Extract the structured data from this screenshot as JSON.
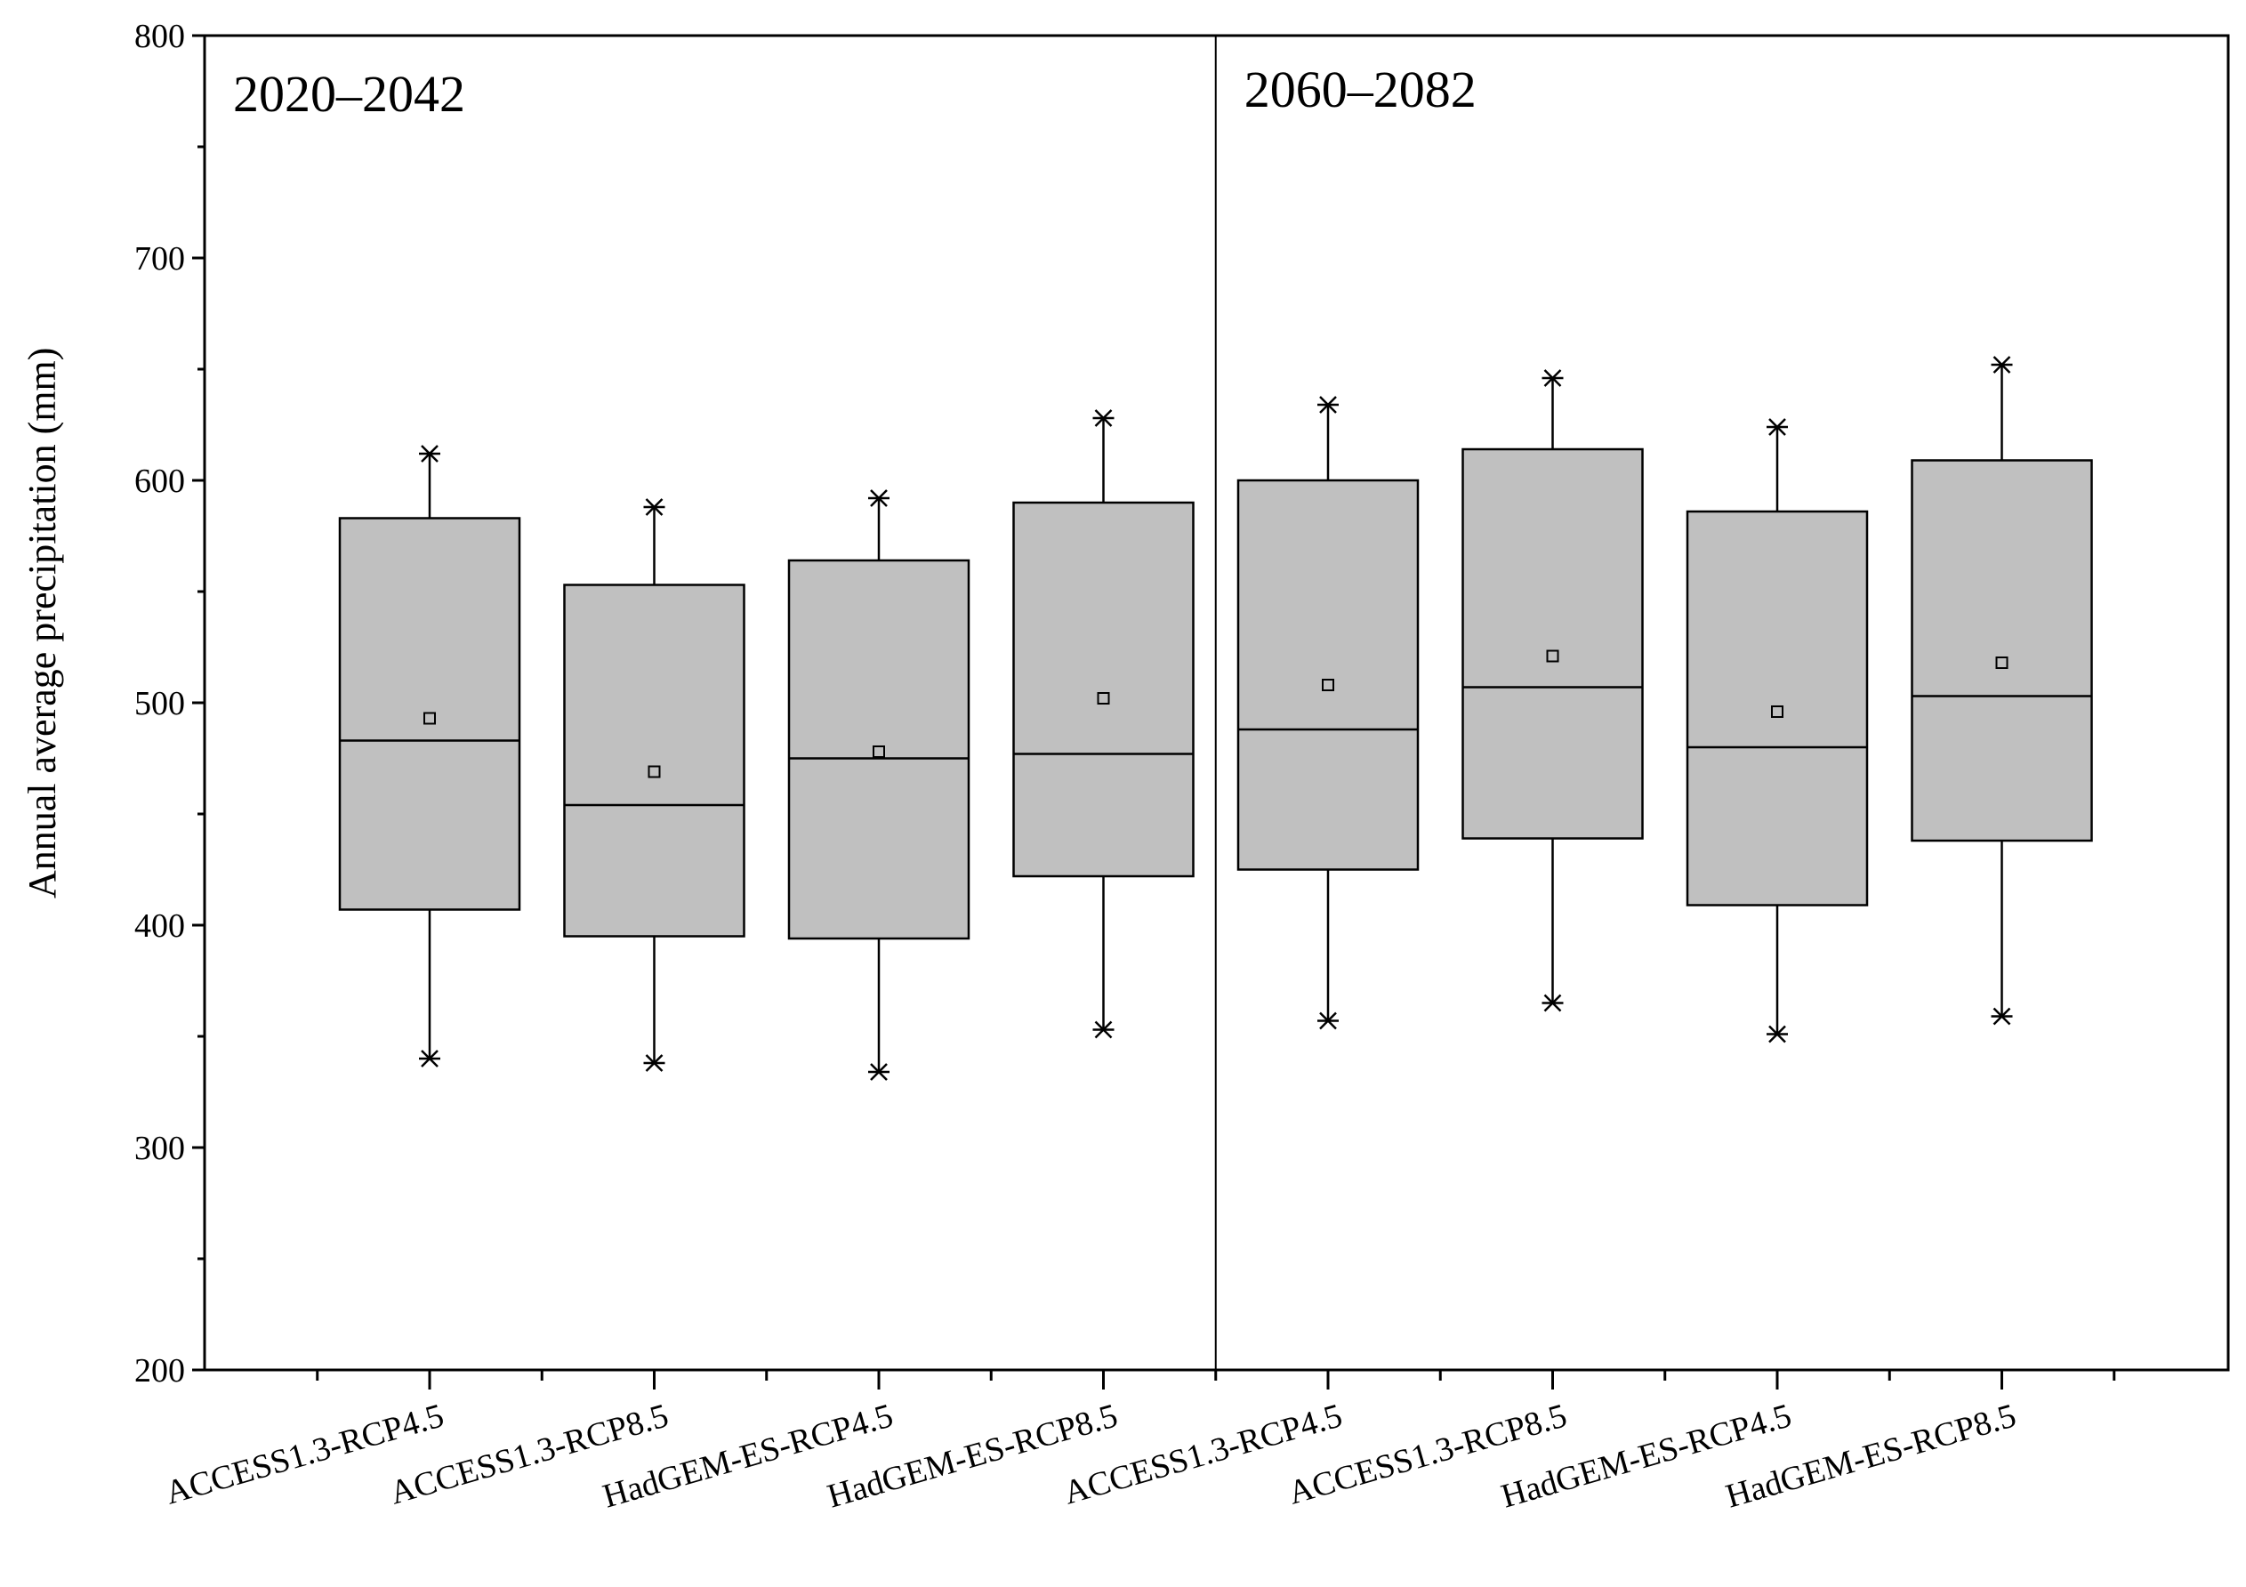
{
  "chart_data": {
    "type": "box",
    "ylabel": "Annual average precipitation (mm)",
    "ylim": [
      200,
      800
    ],
    "yticks": [
      200,
      300,
      400,
      500,
      600,
      700,
      800
    ],
    "grid": false,
    "periods": [
      {
        "label": "2020–2042",
        "first_index": 0,
        "last_index": 3
      },
      {
        "label": "2060–2082",
        "first_index": 4,
        "last_index": 7
      }
    ],
    "box_fill": "#c0c0c0",
    "categories": [
      "ACCESS1.3-RCP4.5",
      "ACCESS1.3-RCP8.5",
      "HadGEM-ES-RCP4.5",
      "HadGEM-ES-RCP8.5",
      "ACCESS1.3-RCP4.5",
      "ACCESS1.3-RCP8.5",
      "HadGEM-ES-RCP4.5",
      "HadGEM-ES-RCP8.5"
    ],
    "boxes": [
      {
        "min": 340,
        "q1": 407,
        "median": 483,
        "mean": 493,
        "q3": 583,
        "max": 612
      },
      {
        "min": 338,
        "q1": 395,
        "median": 454,
        "mean": 469,
        "q3": 553,
        "max": 588
      },
      {
        "min": 334,
        "q1": 394,
        "median": 475,
        "mean": 478,
        "q3": 564,
        "max": 592
      },
      {
        "min": 353,
        "q1": 422,
        "median": 477,
        "mean": 502,
        "q3": 590,
        "max": 628
      },
      {
        "min": 357,
        "q1": 425,
        "median": 488,
        "mean": 508,
        "q3": 600,
        "max": 634
      },
      {
        "min": 365,
        "q1": 439,
        "median": 507,
        "mean": 521,
        "q3": 614,
        "max": 646
      },
      {
        "min": 351,
        "q1": 409,
        "median": 480,
        "mean": 496,
        "q3": 586,
        "max": 624
      },
      {
        "min": 359,
        "q1": 438,
        "median": 503,
        "mean": 518,
        "q3": 609,
        "max": 652
      }
    ]
  }
}
